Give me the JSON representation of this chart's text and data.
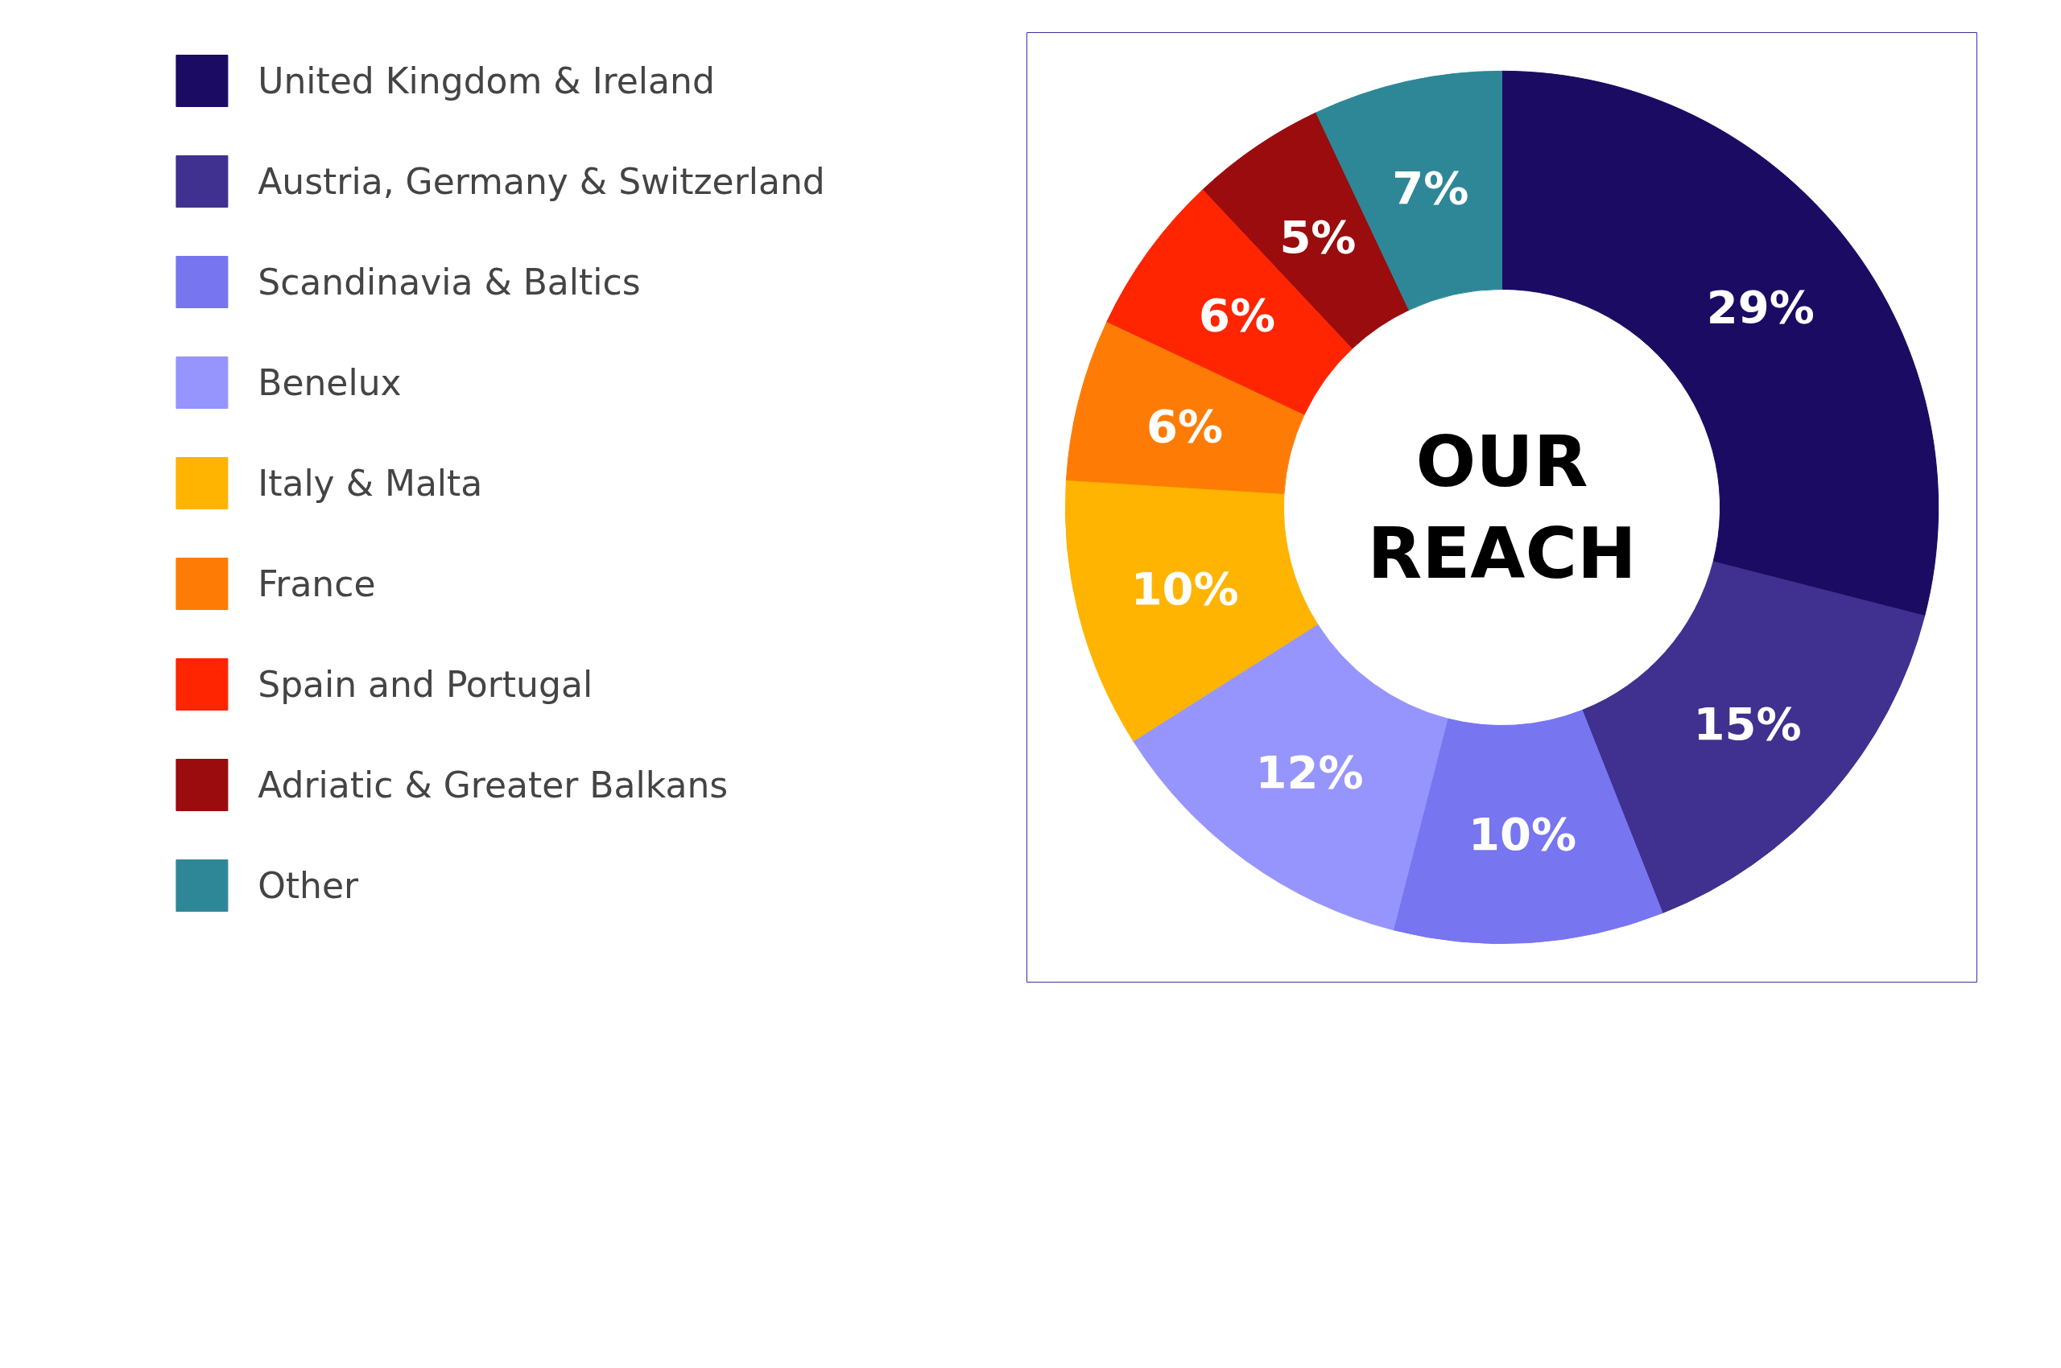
{
  "chart_data": {
    "type": "donut",
    "title": "OUR REACH",
    "categories": [
      "United Kingdom & Ireland",
      "Austria, Germany & Switzerland",
      "Scandinavia & Baltics",
      "Benelux",
      "Italy & Malta",
      "France",
      "Spain and Portugal",
      "Adriatic & Greater Balkans",
      "Other"
    ],
    "values": [
      29,
      15,
      10,
      12,
      10,
      6,
      6,
      5,
      7
    ],
    "value_labels": [
      "29%",
      "15%",
      "10%",
      "12%",
      "10%",
      "6%",
      "6%",
      "5%",
      "7%"
    ],
    "colors": [
      "#1b0b63",
      "#40308f",
      "#7775f0",
      "#9695fd",
      "#feb400",
      "#fe7c05",
      "#fe2500",
      "#9a0c0d",
      "#2e8797"
    ],
    "legend": "left"
  }
}
